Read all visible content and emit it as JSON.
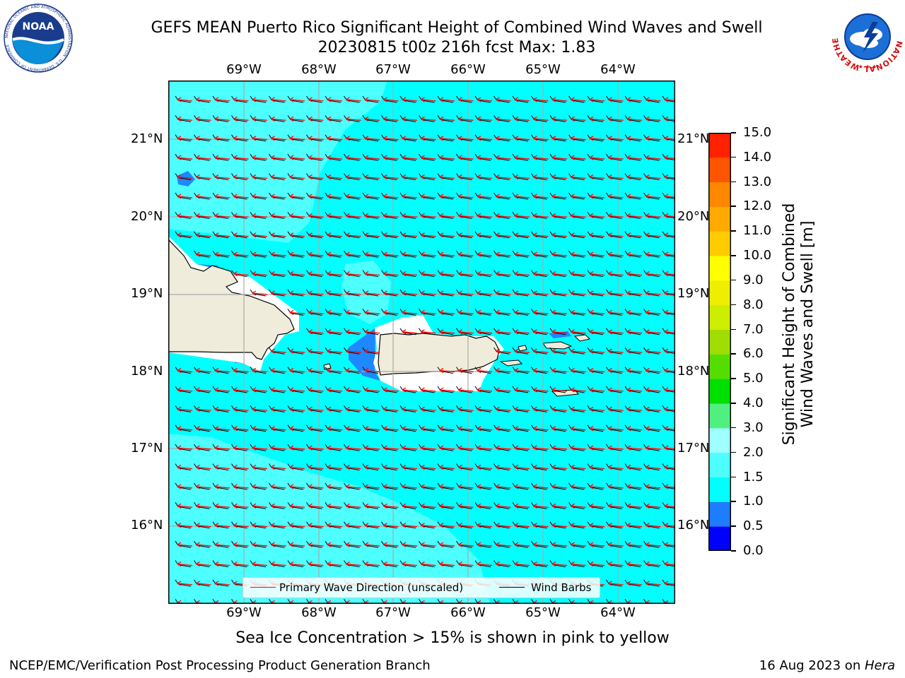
{
  "title": {
    "line1": "GEFS MEAN Puerto Rico Significant Height of Combined Wind Waves and Swell",
    "line2": "20230815 t00z 216h fcst   Max: 1.83"
  },
  "map": {
    "lon_labels": [
      "69°W",
      "68°W",
      "67°W",
      "66°W",
      "65°W",
      "64°W"
    ],
    "lat_labels": [
      "21°N",
      "20°N",
      "19°N",
      "18°N",
      "17°N",
      "16°N"
    ],
    "land_color": "#efecdc",
    "ocean_color": "#00ffff",
    "light_ocean_color": "#4dffff",
    "shallow_color": "#1e88ff"
  },
  "legend": {
    "wave_label": "Primary Wave Direction (unscaled)",
    "barb_label": "Wind Barbs",
    "wave_color": "#ff0000",
    "barb_color": "#000000"
  },
  "colorbar": {
    "label": "Significant Height of Combined Wind Waves and Swell [m]",
    "label_line1": "Significant Height of Combined",
    "label_line2": "Wind Waves and Swell [m]",
    "ticks": [
      "0.0",
      "0.5",
      "1.0",
      "1.5",
      "2.0",
      "3.0",
      "4.0",
      "5.0",
      "6.0",
      "7.0",
      "8.0",
      "9.0",
      "10.0",
      "11.0",
      "12.0",
      "13.0",
      "14.0",
      "15.0"
    ],
    "colors": [
      "#0000ff",
      "#1e7cff",
      "#00ffff",
      "#4dffff",
      "#a0ffff",
      "#50f080",
      "#00e000",
      "#55dd00",
      "#a0dd00",
      "#ccee00",
      "#eeee00",
      "#ffff00",
      "#ffcc00",
      "#ffaa00",
      "#ff8800",
      "#ff5500",
      "#ff2200",
      "#ff0000"
    ]
  },
  "logos": {
    "noaa_text": "NOAA",
    "noaa_ring": "NATIONAL OCEANIC AND ATMOSPHERIC ADMINISTRATION · U.S. DEPARTMENT OF COMMERCE",
    "nws_ring": "NATIONAL WEATHER SERVICE"
  },
  "subtitle": "Sea Ice Concentration > 15% is shown in pink to yellow",
  "footer": {
    "left": "NCEP/EMC/Verification Post Processing Product Generation Branch",
    "right_prefix": "16 Aug 2023 on ",
    "right_host": "Hera"
  }
}
